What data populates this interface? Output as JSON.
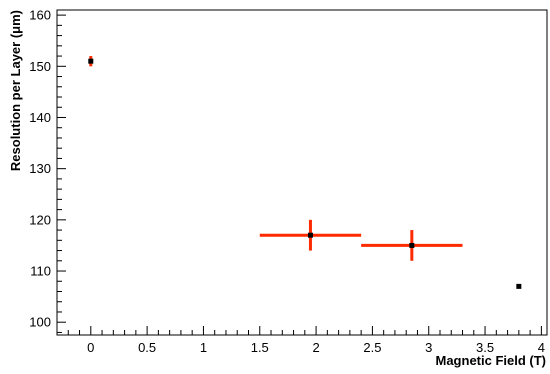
{
  "chart_data": {
    "type": "scatter",
    "title": "",
    "xlabel": "Magnetic Field (T)",
    "ylabel": "Resolution per Layer (μm)",
    "xlim": [
      -0.3,
      4.05
    ],
    "ylim": [
      97.5,
      161
    ],
    "x_ticks": [
      0,
      0.5,
      1,
      1.5,
      2,
      2.5,
      3,
      3.5,
      4
    ],
    "x_tick_labels": [
      "0",
      "0.5",
      "1",
      "1.5",
      "2",
      "2.5",
      "3",
      "3.5",
      "4"
    ],
    "y_ticks": [
      100,
      110,
      120,
      130,
      140,
      150,
      160
    ],
    "y_tick_labels": [
      "100",
      "110",
      "120",
      "130",
      "140",
      "150",
      "160"
    ],
    "grid": false,
    "legend": "none",
    "series": [
      {
        "color": "#ff2a00",
        "marker_color": "#000000",
        "points": [
          {
            "x": 0,
            "y": 151,
            "x_low": 0,
            "x_high": 0,
            "y_err": 1
          },
          {
            "x": 1.95,
            "y": 117,
            "x_low": 1.5,
            "x_high": 2.4,
            "y_err": 3
          },
          {
            "x": 2.85,
            "y": 115,
            "x_low": 2.4,
            "x_high": 3.3,
            "y_err": 3
          },
          {
            "x": 3.8,
            "y": 107,
            "x_low": 3.8,
            "x_high": 3.8,
            "y_err": 0
          }
        ]
      }
    ]
  }
}
